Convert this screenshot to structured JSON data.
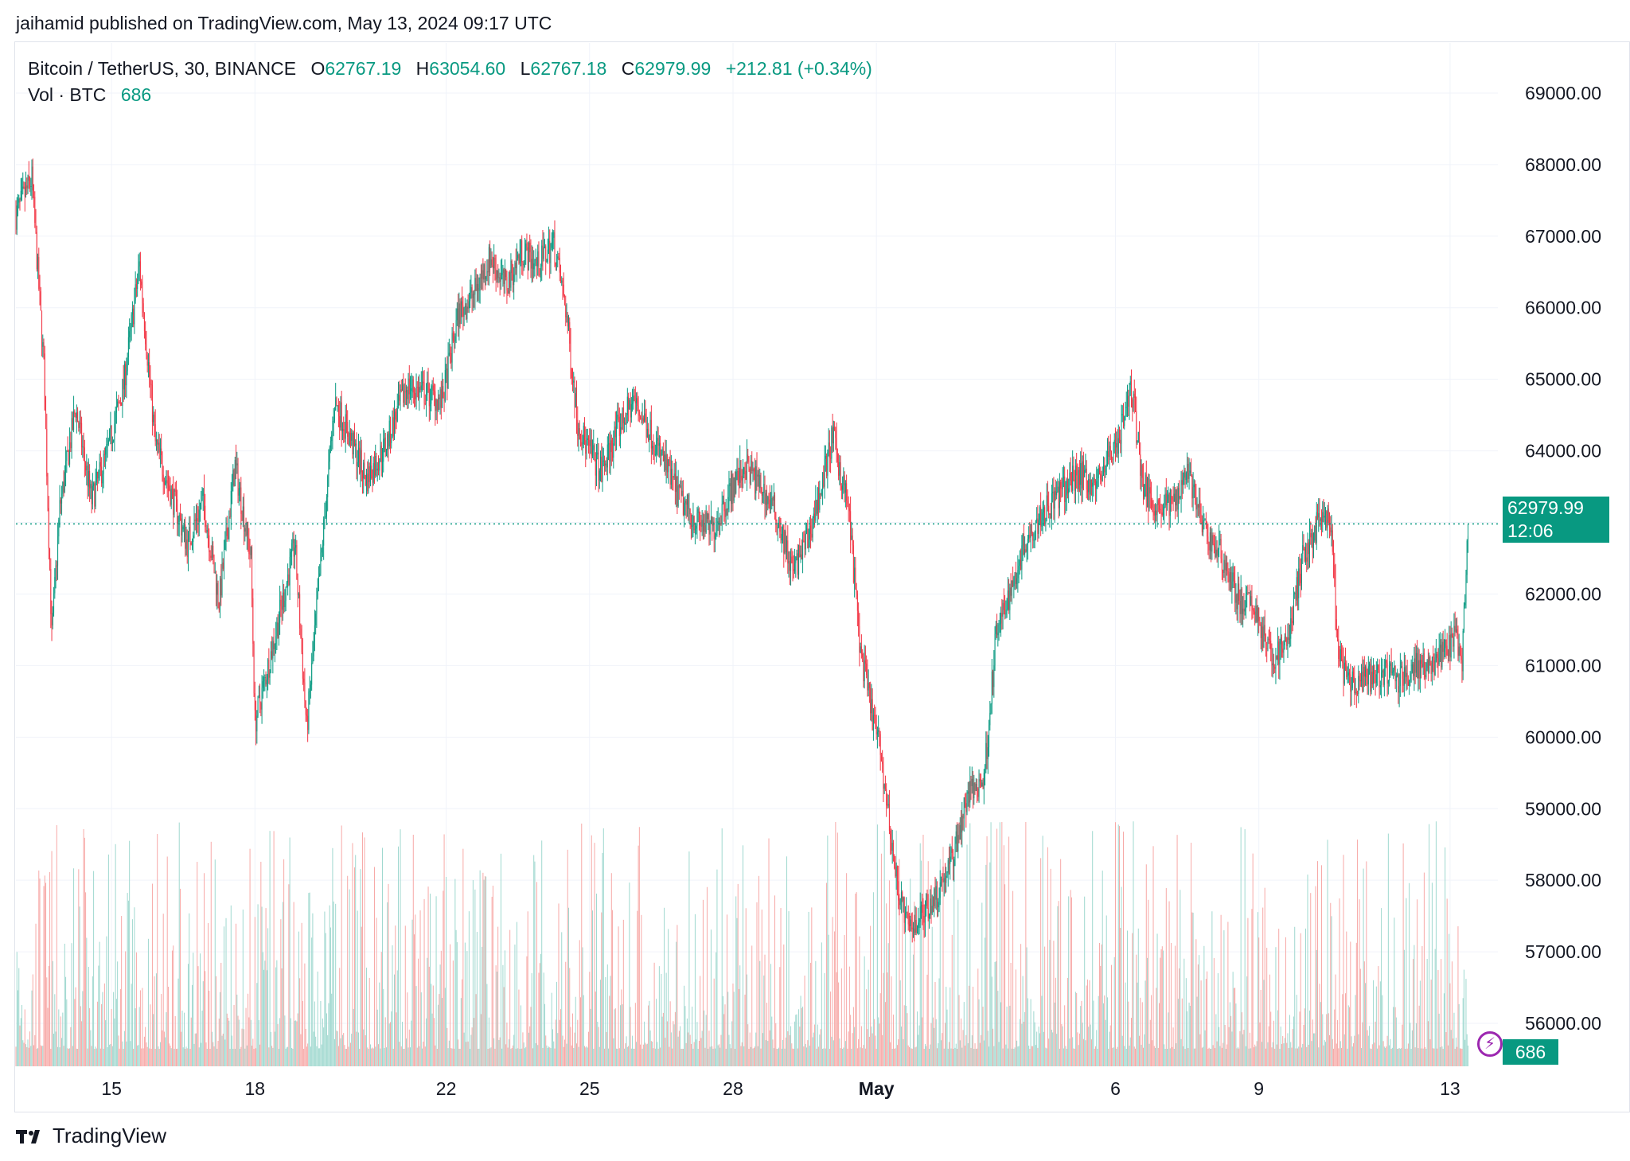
{
  "header": {
    "publisher_line": "jaihamid published on TradingView.com, May 13, 2024 09:17 UTC"
  },
  "legend": {
    "symbol": "Bitcoin / TetherUS, 30, BINANCE",
    "o_label": "O",
    "o_value": "62767.19",
    "h_label": "H",
    "h_value": "63054.60",
    "l_label": "L",
    "l_value": "62767.18",
    "c_label": "C",
    "c_value": "62979.99",
    "change": "+212.81 (+0.34%)",
    "vol_label": "Vol · BTC",
    "vol_value": "686"
  },
  "badges": {
    "last_price": "62979.99",
    "countdown": "12:06",
    "volume": "686"
  },
  "footer": {
    "brand": "TradingView"
  },
  "colors": {
    "up": "#089981",
    "down": "#f23645",
    "up_volume": "#9fd8cf",
    "down_volume": "#f7a9a7",
    "grid": "#f0f3fa",
    "lightning": "#9c27b0"
  },
  "chart_data": {
    "type": "candlestick",
    "title": "Bitcoin / TetherUS, 30, BINANCE",
    "interval": "30",
    "y_axis_ticks": [
      "69000.00",
      "68000.00",
      "67000.00",
      "66000.00",
      "65000.00",
      "64000.00",
      "63000.00",
      "62000.00",
      "61000.00",
      "60000.00",
      "59000.00",
      "58000.00",
      "57000.00",
      "56000.00"
    ],
    "ylim": [
      55400,
      69700
    ],
    "x_axis_ticks": [
      "15",
      "18",
      "22",
      "25",
      "28",
      "May",
      "6",
      "9",
      "13"
    ],
    "x_tick_dates": [
      "2024-04-15",
      "2024-04-18",
      "2024-04-22",
      "2024-04-25",
      "2024-04-28",
      "2024-05-01",
      "2024-05-06",
      "2024-05-09",
      "2024-05-13"
    ],
    "xlim": [
      "2024-04-13",
      "2024-05-14"
    ],
    "last_price": 62979.99,
    "grid": true,
    "close_path": [
      [
        "2024-04-13T00:00",
        67300
      ],
      [
        "2024-04-13T08:00",
        67800
      ],
      [
        "2024-04-13T14:00",
        65200
      ],
      [
        "2024-04-13T18:00",
        61400
      ],
      [
        "2024-04-13T22:00",
        63200
      ],
      [
        "2024-04-14T06:00",
        64600
      ],
      [
        "2024-04-14T14:00",
        63300
      ],
      [
        "2024-04-14T22:00",
        64000
      ],
      [
        "2024-04-15T06:00",
        64900
      ],
      [
        "2024-04-15T14:00",
        66600
      ],
      [
        "2024-04-15T22:00",
        64100
      ],
      [
        "2024-04-16T06:00",
        63400
      ],
      [
        "2024-04-16T14:00",
        62700
      ],
      [
        "2024-04-16T22:00",
        63300
      ],
      [
        "2024-04-17T06:00",
        61900
      ],
      [
        "2024-04-17T14:00",
        63800
      ],
      [
        "2024-04-17T22:00",
        62500
      ],
      [
        "2024-04-18T00:00",
        60200
      ],
      [
        "2024-04-18T10:00",
        61400
      ],
      [
        "2024-04-18T20:00",
        62700
      ],
      [
        "2024-04-19T02:00",
        60100
      ],
      [
        "2024-04-19T08:00",
        62100
      ],
      [
        "2024-04-19T16:00",
        64700
      ],
      [
        "2024-04-19T22:00",
        64300
      ],
      [
        "2024-04-20T08:00",
        63600
      ],
      [
        "2024-04-20T18:00",
        64100
      ],
      [
        "2024-04-21T04:00",
        64900
      ],
      [
        "2024-04-21T14:00",
        64800
      ],
      [
        "2024-04-21T22:00",
        64700
      ],
      [
        "2024-04-22T06:00",
        65900
      ],
      [
        "2024-04-22T14:00",
        66200
      ],
      [
        "2024-04-22T22:00",
        66700
      ],
      [
        "2024-04-23T06:00",
        66300
      ],
      [
        "2024-04-23T14:00",
        66800
      ],
      [
        "2024-04-23T22:00",
        66600
      ],
      [
        "2024-04-24T06:00",
        66900
      ],
      [
        "2024-04-24T12:00",
        66000
      ],
      [
        "2024-04-24T18:00",
        64400
      ],
      [
        "2024-04-24T22:00",
        64100
      ],
      [
        "2024-04-25T06:00",
        63700
      ],
      [
        "2024-04-25T14:00",
        64300
      ],
      [
        "2024-04-25T22:00",
        64700
      ],
      [
        "2024-04-26T06:00",
        64300
      ],
      [
        "2024-04-26T14:00",
        63800
      ],
      [
        "2024-04-26T22:00",
        63300
      ],
      [
        "2024-04-27T06:00",
        63000
      ],
      [
        "2024-04-27T14:00",
        62900
      ],
      [
        "2024-04-27T22:00",
        63400
      ],
      [
        "2024-04-28T06:00",
        63800
      ],
      [
        "2024-04-28T14:00",
        63500
      ],
      [
        "2024-04-28T22:00",
        63100
      ],
      [
        "2024-04-29T06:00",
        62300
      ],
      [
        "2024-04-29T14:00",
        62800
      ],
      [
        "2024-04-29T22:00",
        63700
      ],
      [
        "2024-04-30T02:00",
        64200
      ],
      [
        "2024-04-30T10:00",
        63200
      ],
      [
        "2024-04-30T16:00",
        61200
      ],
      [
        "2024-04-30T22:00",
        60300
      ],
      [
        "2024-05-01T02:00",
        59800
      ],
      [
        "2024-05-01T10:00",
        58000
      ],
      [
        "2024-05-01T16:00",
        57300
      ],
      [
        "2024-05-01T22:00",
        57500
      ],
      [
        "2024-05-02T06:00",
        57800
      ],
      [
        "2024-05-02T14:00",
        58300
      ],
      [
        "2024-05-02T22:00",
        59200
      ],
      [
        "2024-05-03T06:00",
        59400
      ],
      [
        "2024-05-03T12:00",
        61400
      ],
      [
        "2024-05-03T20:00",
        62100
      ],
      [
        "2024-05-04T02:00",
        62700
      ],
      [
        "2024-05-04T10:00",
        63100
      ],
      [
        "2024-05-04T20:00",
        63400
      ],
      [
        "2024-05-05T06:00",
        63700
      ],
      [
        "2024-05-05T14:00",
        63500
      ],
      [
        "2024-05-05T22:00",
        64000
      ],
      [
        "2024-05-06T02:00",
        64200
      ],
      [
        "2024-05-06T08:00",
        64900
      ],
      [
        "2024-05-06T14:00",
        63500
      ],
      [
        "2024-05-06T22:00",
        63200
      ],
      [
        "2024-05-07T06:00",
        63300
      ],
      [
        "2024-05-07T12:00",
        63800
      ],
      [
        "2024-05-07T20:00",
        62900
      ],
      [
        "2024-05-08T06:00",
        62500
      ],
      [
        "2024-05-08T14:00",
        61900
      ],
      [
        "2024-05-08T22:00",
        61800
      ],
      [
        "2024-05-09T06:00",
        61100
      ],
      [
        "2024-05-09T14:00",
        61300
      ],
      [
        "2024-05-09T22:00",
        62500
      ],
      [
        "2024-05-10T06:00",
        63000
      ],
      [
        "2024-05-10T12:00",
        63000
      ],
      [
        "2024-05-10T16:00",
        61100
      ],
      [
        "2024-05-10T22:00",
        60700
      ],
      [
        "2024-05-11T06:00",
        60800
      ],
      [
        "2024-05-11T14:00",
        60900
      ],
      [
        "2024-05-11T22:00",
        60800
      ],
      [
        "2024-05-12T06:00",
        61000
      ],
      [
        "2024-05-12T14:00",
        61000
      ],
      [
        "2024-05-12T22:00",
        61200
      ],
      [
        "2024-05-13T02:00",
        61400
      ],
      [
        "2024-05-13T06:00",
        61000
      ],
      [
        "2024-05-13T09:00",
        62979.99
      ]
    ],
    "volume": {
      "name": "Vol · BTC",
      "last": 686
    }
  }
}
